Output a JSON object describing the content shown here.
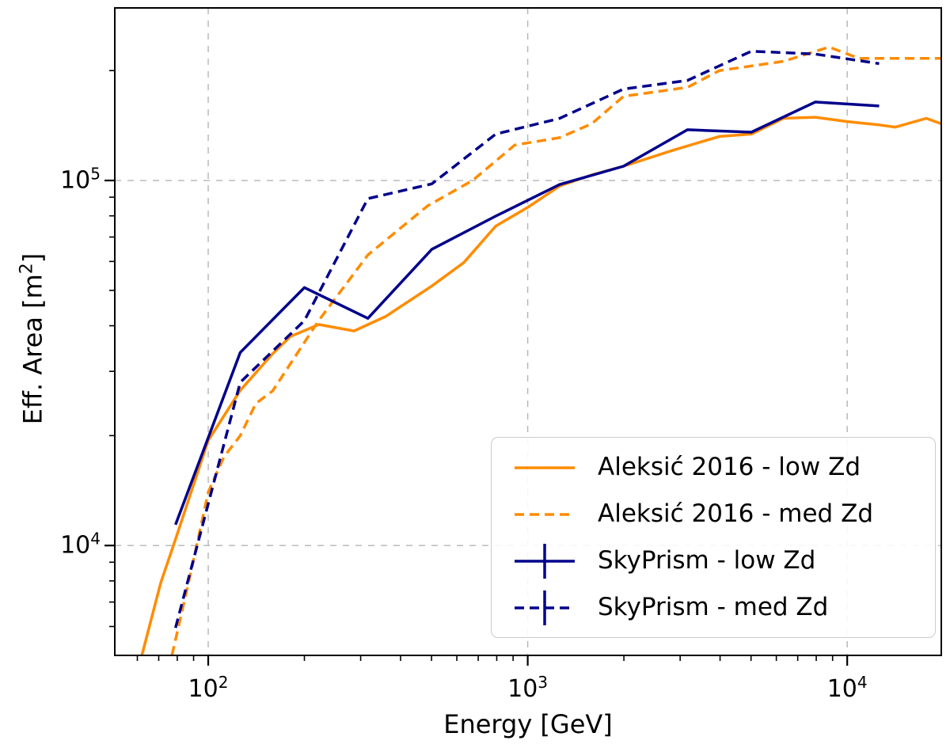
{
  "chart_data": {
    "type": "line",
    "title": "",
    "xlabel": "Energy [GeV]",
    "ylabel_prefix": "Eff. Area [m",
    "ylabel_sup": "2",
    "ylabel_suffix": "]",
    "xscale": "log",
    "yscale": "log",
    "xlim": [
      51,
      19700
    ],
    "ylim": [
      5000,
      297000
    ],
    "grid": {
      "on": true,
      "color": "#b4b4b4",
      "dash": [
        8,
        8
      ],
      "legend_position": "lower right"
    },
    "x_ticks": [
      {
        "value": 100,
        "base": "10",
        "exp": "2"
      },
      {
        "value": 1000,
        "base": "10",
        "exp": "3"
      },
      {
        "value": 10000,
        "base": "10",
        "exp": "4"
      }
    ],
    "y_ticks": [
      {
        "value": 10000,
        "base": "10",
        "exp": "4"
      },
      {
        "value": 100000,
        "base": "10",
        "exp": "5"
      }
    ],
    "x_minor_ticks": [
      60,
      70,
      80,
      90,
      200,
      300,
      400,
      500,
      600,
      700,
      800,
      900,
      2000,
      3000,
      4000,
      5000,
      6000,
      7000,
      8000,
      9000
    ],
    "y_minor_ticks": [
      6000,
      7000,
      8000,
      9000,
      20000,
      30000,
      40000,
      50000,
      60000,
      70000,
      80000,
      90000,
      200000
    ],
    "series": [
      {
        "name": "Aleksić 2016 - low Zd",
        "color": "#ff8c00",
        "dash": "solid",
        "errorbar_legend": false,
        "points": [
          [
            62,
            5000
          ],
          [
            71,
            7900
          ],
          [
            79,
            10400
          ],
          [
            100,
            19400
          ],
          [
            126,
            26600
          ],
          [
            159,
            33500
          ],
          [
            181,
            37400
          ],
          [
            222,
            40300
          ],
          [
            286,
            38700
          ],
          [
            359,
            42400
          ],
          [
            501,
            51400
          ],
          [
            631,
            59600
          ],
          [
            794,
            75000
          ],
          [
            1000,
            84400
          ],
          [
            1259,
            96600
          ],
          [
            1585,
            103500
          ],
          [
            1995,
            109400
          ],
          [
            2851,
            121000
          ],
          [
            3981,
            132000
          ],
          [
            5012,
            134000
          ],
          [
            6310,
            148000
          ],
          [
            7943,
            149000
          ],
          [
            10000,
            145000
          ],
          [
            12589,
            142000
          ],
          [
            14160,
            140000
          ],
          [
            17690,
            148000
          ],
          [
            19700,
            143000
          ]
        ]
      },
      {
        "name": "Aleksić 2016 - med Zd",
        "color": "#ff8c00",
        "dash": "dashed",
        "errorbar_legend": false,
        "points": [
          [
            77,
            5000
          ],
          [
            88,
            8350
          ],
          [
            100,
            14000
          ],
          [
            112,
            17500
          ],
          [
            126,
            20000
          ],
          [
            141,
            24500
          ],
          [
            159,
            26500
          ],
          [
            222,
            41400
          ],
          [
            316,
            62500
          ],
          [
            486,
            85200
          ],
          [
            672,
            100000
          ],
          [
            910,
            125000
          ],
          [
            1259,
            131000
          ],
          [
            1585,
            143000
          ],
          [
            1995,
            170000
          ],
          [
            3162,
            180000
          ],
          [
            3981,
            200000
          ],
          [
            6310,
            212000
          ],
          [
            8770,
            232000
          ],
          [
            10900,
            216000
          ],
          [
            19700,
            216000
          ]
        ]
      },
      {
        "name": "SkyPrism - low Zd",
        "color": "#00008b",
        "dash": "solid",
        "errorbar_legend": true,
        "points": [
          [
            79,
            11400
          ],
          [
            126,
            33800
          ],
          [
            200,
            50900
          ],
          [
            316,
            41900
          ],
          [
            501,
            64800
          ],
          [
            794,
            79900
          ],
          [
            1259,
            97500
          ],
          [
            1995,
            109400
          ],
          [
            3162,
            137700
          ],
          [
            5012,
            135600
          ],
          [
            7943,
            164000
          ],
          [
            12589,
            160000
          ]
        ]
      },
      {
        "name": "SkyPrism - med Zd",
        "color": "#00008b",
        "dash": "dashed",
        "errorbar_legend": true,
        "points": [
          [
            79,
            5950
          ],
          [
            126,
            28000
          ],
          [
            200,
            41300
          ],
          [
            316,
            89200
          ],
          [
            501,
            97900
          ],
          [
            794,
            134000
          ],
          [
            1259,
            148000
          ],
          [
            1995,
            178000
          ],
          [
            3162,
            188000
          ],
          [
            5012,
            226000
          ],
          [
            7943,
            222000
          ],
          [
            12589,
            209000
          ]
        ]
      }
    ]
  }
}
